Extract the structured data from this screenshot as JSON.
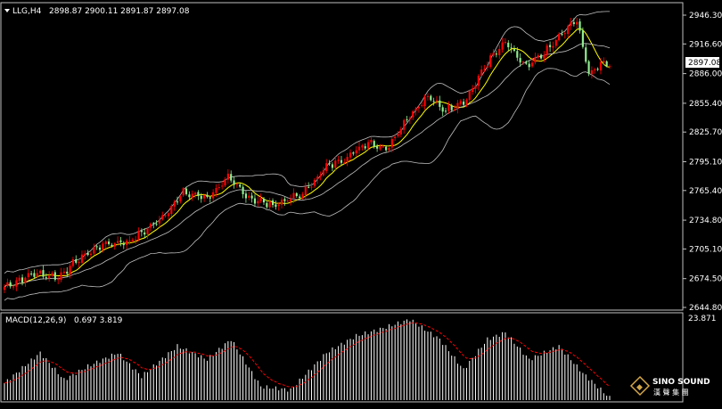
{
  "header": {
    "symbol": "LLG,H4",
    "ohlc": "2898.87 2900.11 2891.87 2897.08"
  },
  "macd_header": {
    "label": "MACD(12,26,9)",
    "values": "0.697 3.819"
  },
  "price_axis": {
    "ticks": [
      "2946.30",
      "2916.60",
      "2886.00",
      "2855.40",
      "2825.70",
      "2795.10",
      "2765.40",
      "2734.80",
      "2705.10",
      "2674.50",
      "2644.80"
    ],
    "current_price_label": "2897.08"
  },
  "macd_axis": {
    "max_label": "23.871"
  },
  "watermark": {
    "brand": "SINO SOUND",
    "sub": "漢 聲 集 團"
  },
  "colors": {
    "background": "#000000",
    "bull_candle": "#ff0000",
    "bear_candle": "#90ee90",
    "ma_line": "#ffff00",
    "band_line": "#c0c0c0",
    "macd_hist": "#ffffff",
    "signal_line": "#ff0000",
    "axis": "#c0c0c0"
  },
  "chart_data": {
    "type": "candlestick",
    "timeframe": "H4",
    "symbol": "LLG",
    "ylim": [
      2644.8,
      2946.3
    ],
    "indicators": [
      "Bollinger Bands",
      "Moving Average",
      "MACD(12,26,9)"
    ],
    "keypoints_close": [
      [
        0,
        2666
      ],
      [
        10,
        2680
      ],
      [
        18,
        2676
      ],
      [
        25,
        2695
      ],
      [
        33,
        2710
      ],
      [
        42,
        2713
      ],
      [
        52,
        2735
      ],
      [
        60,
        2763
      ],
      [
        68,
        2758
      ],
      [
        75,
        2778
      ],
      [
        82,
        2758
      ],
      [
        90,
        2750
      ],
      [
        100,
        2762
      ],
      [
        108,
        2790
      ],
      [
        115,
        2800
      ],
      [
        122,
        2816
      ],
      [
        128,
        2808
      ],
      [
        135,
        2840
      ],
      [
        142,
        2862
      ],
      [
        148,
        2848
      ],
      [
        155,
        2860
      ],
      [
        162,
        2898
      ],
      [
        168,
        2918
      ],
      [
        175,
        2892
      ],
      [
        182,
        2910
      ],
      [
        188,
        2930
      ],
      [
        192,
        2942
      ],
      [
        196,
        2885
      ],
      [
        200,
        2897
      ],
      [
        203,
        2897
      ]
    ],
    "macd_keypoints": [
      [
        0,
        5
      ],
      [
        12,
        14
      ],
      [
        20,
        6
      ],
      [
        28,
        10
      ],
      [
        38,
        14
      ],
      [
        46,
        7
      ],
      [
        58,
        16
      ],
      [
        68,
        12
      ],
      [
        76,
        18
      ],
      [
        86,
        4
      ],
      [
        96,
        3
      ],
      [
        108,
        14
      ],
      [
        118,
        19
      ],
      [
        126,
        21
      ],
      [
        136,
        23.9
      ],
      [
        146,
        18
      ],
      [
        154,
        9
      ],
      [
        162,
        18
      ],
      [
        168,
        20
      ],
      [
        176,
        12
      ],
      [
        186,
        16
      ],
      [
        194,
        8
      ],
      [
        203,
        0.7
      ]
    ],
    "last_macd": 0.697,
    "last_signal": 3.819
  }
}
